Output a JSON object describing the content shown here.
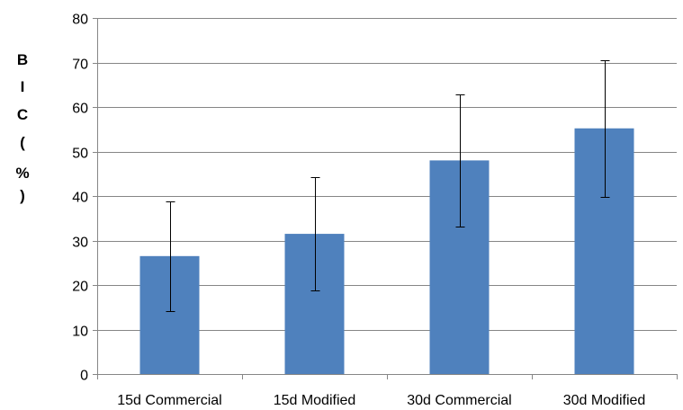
{
  "chart_data": {
    "type": "bar",
    "title": "",
    "xlabel": "",
    "ylabel_chars": [
      "B",
      "I",
      "C",
      "(",
      "%",
      ")"
    ],
    "categories": [
      "15d Commercial",
      "15d Modified",
      "30d Commercial",
      "30d Modified"
    ],
    "series": [
      {
        "values": [
          26.5,
          31.5,
          48,
          55.2
        ],
        "error": [
          12.3,
          12.8,
          14.8,
          15.4
        ]
      }
    ],
    "ylim": [
      0,
      80
    ],
    "yticks": [
      "0",
      "10",
      "20",
      "30",
      "40",
      "50",
      "60",
      "70",
      "80"
    ],
    "grid": true,
    "legend": "none",
    "colors": {
      "bar": "#4f81bd",
      "grid": "#868686",
      "axis": "#868686",
      "error": "#000000"
    }
  }
}
